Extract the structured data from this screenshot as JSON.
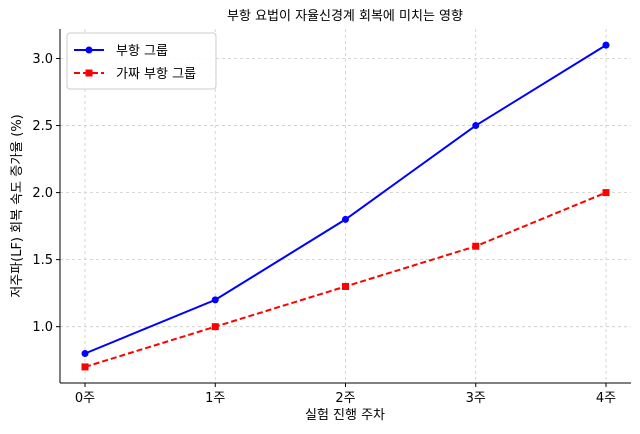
{
  "chart_data": {
    "type": "line",
    "title": "부항 요법이 자율신경계 회복에 미치는 영향",
    "xlabel": "실험 진행 주차",
    "ylabel": "저주파(LF) 회복 속도 증가율 (%)",
    "categories": [
      "0주",
      "1주",
      "2주",
      "3주",
      "4주"
    ],
    "ylim": [
      0.58,
      3.22
    ],
    "yticks": [
      1.0,
      1.5,
      2.0,
      2.5,
      3.0
    ],
    "ytick_labels": [
      "1.0",
      "1.5",
      "2.0",
      "2.5",
      "3.0"
    ],
    "grid": true,
    "legend_position": "upper-left",
    "series": [
      {
        "name": "부항 그룹",
        "values": [
          0.8,
          1.2,
          1.8,
          2.5,
          3.1
        ],
        "color": "#0000ff",
        "style": "solid",
        "marker": "circle"
      },
      {
        "name": "가짜 부항 그룹",
        "values": [
          0.7,
          1.0,
          1.3,
          1.6,
          2.0
        ],
        "color": "#ff0000",
        "style": "dashed",
        "marker": "square"
      }
    ]
  }
}
